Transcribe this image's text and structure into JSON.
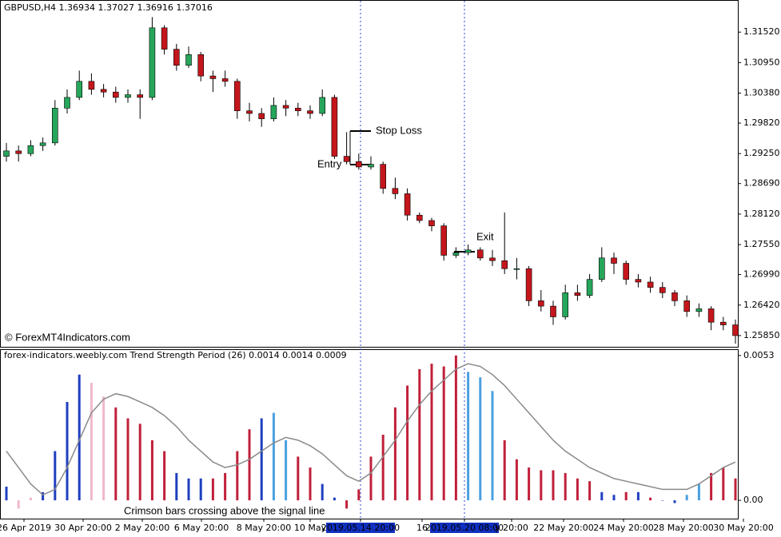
{
  "chart_data": [
    {
      "type": "candlestick",
      "title": "GBPUSD,H4  1.36934 1.37027 1.36916 1.37016",
      "open": [
        1.292,
        1.293,
        1.2925,
        1.294,
        1.2945,
        1.301,
        1.303,
        1.306,
        1.3045,
        1.304,
        1.303,
        1.3035,
        1.303,
        1.316,
        1.312,
        1.309,
        1.311,
        1.307,
        1.3065,
        1.306,
        1.3005,
        1.3,
        1.299,
        1.3015,
        1.301,
        1.3005,
        1.3,
        1.303,
        1.292,
        1.291,
        1.29,
        1.2905,
        1.286,
        1.285,
        1.281,
        1.28,
        1.279,
        1.2735,
        1.274,
        1.2745,
        1.273,
        1.2725,
        1.271,
        1.271,
        1.265,
        1.264,
        1.262,
        1.2665,
        1.266,
        1.269,
        1.273,
        1.272,
        1.269,
        1.2685,
        1.2675,
        1.2665,
        1.265,
        1.263,
        1.2635,
        1.261,
        1.2605
      ],
      "high": [
        1.2945,
        1.294,
        1.295,
        1.2955,
        1.3025,
        1.3045,
        1.308,
        1.3075,
        1.3055,
        1.305,
        1.3045,
        1.3045,
        1.318,
        1.3165,
        1.313,
        1.3125,
        1.3115,
        1.308,
        1.308,
        1.3065,
        1.302,
        1.301,
        1.303,
        1.3025,
        1.302,
        1.3015,
        1.3045,
        1.3035,
        1.2965,
        1.2925,
        1.292,
        1.291,
        1.288,
        1.286,
        1.2815,
        1.2805,
        1.2795,
        1.275,
        1.2755,
        1.275,
        1.2745,
        1.2815,
        1.273,
        1.2715,
        1.267,
        1.265,
        1.268,
        1.268,
        1.27,
        1.275,
        1.274,
        1.2725,
        1.27,
        1.2695,
        1.2685,
        1.267,
        1.266,
        1.2645,
        1.264,
        1.262,
        1.2615
      ],
      "low": [
        1.291,
        1.291,
        1.292,
        1.293,
        1.294,
        1.3,
        1.3025,
        1.3035,
        1.303,
        1.302,
        1.302,
        1.299,
        1.3025,
        1.311,
        1.308,
        1.3085,
        1.306,
        1.304,
        1.305,
        1.299,
        1.2985,
        1.2975,
        1.2985,
        1.2995,
        1.2995,
        1.299,
        1.2995,
        1.2915,
        1.2905,
        1.2895,
        1.2895,
        1.285,
        1.284,
        1.28,
        1.2795,
        1.278,
        1.2725,
        1.273,
        1.2735,
        1.2725,
        1.2715,
        1.27,
        1.269,
        1.264,
        1.263,
        1.2605,
        1.2615,
        1.265,
        1.2655,
        1.2685,
        1.27,
        1.268,
        1.2675,
        1.2665,
        1.2655,
        1.264,
        1.262,
        1.262,
        1.2595,
        1.2595,
        1.257
      ],
      "close": [
        1.293,
        1.2925,
        1.294,
        1.2945,
        1.301,
        1.303,
        1.306,
        1.3045,
        1.304,
        1.303,
        1.3035,
        1.303,
        1.316,
        1.312,
        1.309,
        1.311,
        1.307,
        1.3065,
        1.306,
        1.3005,
        1.3,
        1.299,
        1.3015,
        1.301,
        1.3005,
        1.3,
        1.303,
        1.292,
        1.291,
        1.29,
        1.2905,
        1.286,
        1.285,
        1.281,
        1.28,
        1.279,
        1.2735,
        1.274,
        1.2745,
        1.273,
        1.2725,
        1.271,
        1.271,
        1.265,
        1.264,
        1.262,
        1.2665,
        1.266,
        1.269,
        1.273,
        1.272,
        1.269,
        1.2685,
        1.2675,
        1.2665,
        1.265,
        1.263,
        1.2635,
        1.261,
        1.2605,
        1.2585
      ],
      "up_color": "#26a65b",
      "down_color": "#c4161c",
      "ylim": [
        1.2564,
        1.3209
      ],
      "yticks": [
        {
          "value": 1.3152,
          "label": "1.31520"
        },
        {
          "value": 1.3095,
          "label": "1.30950"
        },
        {
          "value": 1.3038,
          "label": "1.30380"
        },
        {
          "value": 1.2982,
          "label": "1.29820"
        },
        {
          "value": 1.2925,
          "label": "1.29250"
        },
        {
          "value": 1.2869,
          "label": "1.28690"
        },
        {
          "value": 1.2812,
          "label": "1.28120"
        },
        {
          "value": 1.2755,
          "label": "1.27550"
        },
        {
          "value": 1.2699,
          "label": "1.26990"
        },
        {
          "value": 1.2642,
          "label": "1.26420"
        },
        {
          "value": 1.2585,
          "label": "1.25850"
        }
      ],
      "annotations": [
        "Stop Loss",
        "Entry",
        "Exit"
      ],
      "watermark": "© ForexMT4Indicators.com",
      "x_labels": [
        "26 Apr 2019",
        "30 Apr 20:00",
        "2 May 20:00",
        "6 May 20:00",
        "8 May 20:00",
        "10 May",
        "2019.05.14 20:00",
        "16",
        "2019.05.20 08:00",
        "y 20:00",
        "22 May 20:00",
        "24 May 20:00",
        "28 May 20:00",
        "30 May 20:00"
      ]
    },
    {
      "type": "bar",
      "title": "forex-indicators.weebly.com Trend Strength Period (26) 0.0014 0.0014 0.0009",
      "values": [
        0.0005,
        -0.0003,
        0.0001,
        0.0003,
        0.0018,
        0.0036,
        0.0046,
        0.0043,
        0.0038,
        0.0034,
        0.003,
        0.0028,
        0.0022,
        0.0018,
        0.001,
        0.0008,
        0.0008,
        0.0008,
        0.001,
        0.0018,
        0.0026,
        0.003,
        0.0032,
        0.0022,
        0.0016,
        0.0012,
        0.0006,
        0.0001,
        -0.0003,
        0.0004,
        0.0016,
        0.0024,
        0.0034,
        0.0042,
        0.0048,
        0.005,
        0.0049,
        0.0053,
        0.0047,
        0.0045,
        0.004,
        0.0022,
        0.0015,
        0.0012,
        0.0011,
        0.0011,
        0.001,
        0.0008,
        0.0007,
        0.0003,
        0.0002,
        0.0003,
        0.0003,
        0.0001,
        0.0,
        -0.0001,
        0.0002,
        0.0006,
        0.001,
        0.0012,
        0.0008
      ],
      "colors": [
        "#1f3fbf",
        "#f0b8c8",
        "#f0b8c8",
        "#1f3fbf",
        "#1f3fbf",
        "#1f3fbf",
        "#1f3fbf",
        "#f0b8c8",
        "#f0b8c8",
        "#c0203a",
        "#c0203a",
        "#c0203a",
        "#c0203a",
        "#c0203a",
        "#1f3fbf",
        "#1f3fbf",
        "#1f3fbf",
        "#c0203a",
        "#c0203a",
        "#c0203a",
        "#c0203a",
        "#1f3fbf",
        "#4aa0e0",
        "#4aa0e0",
        "#c0203a",
        "#c0203a",
        "#1f3fbf",
        "#1f3fbf",
        "#c0203a",
        "#c0203a",
        "#c0203a",
        "#c0203a",
        "#c0203a",
        "#c0203a",
        "#c0203a",
        "#c0203a",
        "#c0203a",
        "#c0203a",
        "#4aa0e0",
        "#4aa0e0",
        "#4aa0e0",
        "#c0203a",
        "#c0203a",
        "#c0203a",
        "#c0203a",
        "#c0203a",
        "#c0203a",
        "#c0203a",
        "#c0203a",
        "#1f3fbf",
        "#1f3fbf",
        "#c0203a",
        "#1f3fbf",
        "#c0203a",
        "#1f3fbf",
        "#1f3fbf",
        "#4aa0e0",
        "#4aa0e0",
        "#c0203a",
        "#c0203a",
        "#c0203a"
      ],
      "signal": [
        0.0018,
        0.0012,
        0.0006,
        0.0002,
        0.0004,
        0.0012,
        0.0022,
        0.0032,
        0.0037,
        0.0039,
        0.0038,
        0.0036,
        0.0034,
        0.0031,
        0.0027,
        0.0022,
        0.0018,
        0.0014,
        0.0012,
        0.0013,
        0.0015,
        0.0018,
        0.0021,
        0.0023,
        0.0022,
        0.002,
        0.0017,
        0.0013,
        0.0009,
        0.0007,
        0.001,
        0.0016,
        0.0022,
        0.0029,
        0.0035,
        0.004,
        0.0044,
        0.0048,
        0.005,
        0.0049,
        0.0046,
        0.0042,
        0.0037,
        0.0032,
        0.0027,
        0.0022,
        0.0018,
        0.0015,
        0.0012,
        0.001,
        0.0008,
        0.0007,
        0.0006,
        0.0005,
        0.0004,
        0.0004,
        0.0004,
        0.0006,
        0.0009,
        0.0012,
        0.0014
      ],
      "signal_color": "#8a8a8a",
      "ylim": [
        -0.00064,
        0.0055
      ],
      "yticks": [
        0.0053,
        {
          "value": 0,
          "label": "0.00"
        }
      ],
      "annotation": "Crimson bars crossing above the signal line"
    }
  ]
}
